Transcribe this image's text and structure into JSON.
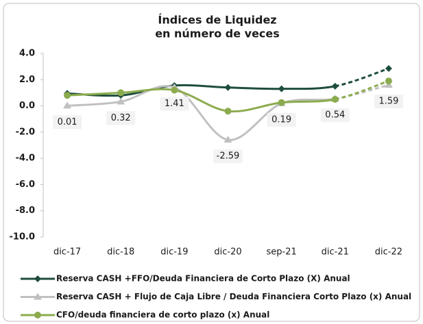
{
  "chart_data": {
    "type": "line",
    "title": [
      "Índices de Liquidez",
      "en número de veces"
    ],
    "categories": [
      "dic-17",
      "dic-18",
      "dic-19",
      "dic-20",
      "sep-21",
      "dic-21",
      "dic-22"
    ],
    "series": [
      {
        "name": "Reserva CASH +FFO/Deuda Financiera de Corto Plazo (X) Anual",
        "color": "#1e4d3b",
        "marker": "diamond",
        "values": [
          0.95,
          0.8,
          1.55,
          1.4,
          1.3,
          1.5,
          2.85
        ]
      },
      {
        "name": "Reserva CASH + Flujo de Caja Libre / Deuda Financiera Corto Plazo  (x) Anual",
        "color": "#c0c0c0",
        "marker": "triangle",
        "values": [
          0.01,
          0.32,
          1.41,
          -2.59,
          0.19,
          0.54,
          1.59
        ],
        "data_labels": true
      },
      {
        "name": "CFO/deuda financiera de corto plazo (x) Anual",
        "color": "#8cab4e",
        "marker": "circle",
        "values": [
          0.8,
          1.0,
          1.2,
          -0.4,
          0.25,
          0.5,
          1.9
        ]
      }
    ],
    "ylim": [
      -10,
      4
    ],
    "yticks": [
      {
        "value": 4,
        "label": "4.0"
      },
      {
        "value": 2,
        "label": "2.0"
      },
      {
        "value": 0,
        "label": "0.0"
      },
      {
        "value": -2,
        "label": "-2.0"
      },
      {
        "value": -4,
        "label": "-4.0"
      },
      {
        "value": -6,
        "label": "-6.0"
      },
      {
        "value": -8,
        "label": "-8.0"
      },
      {
        "value": -10,
        "label": "-10.0"
      }
    ],
    "grid": false
  }
}
